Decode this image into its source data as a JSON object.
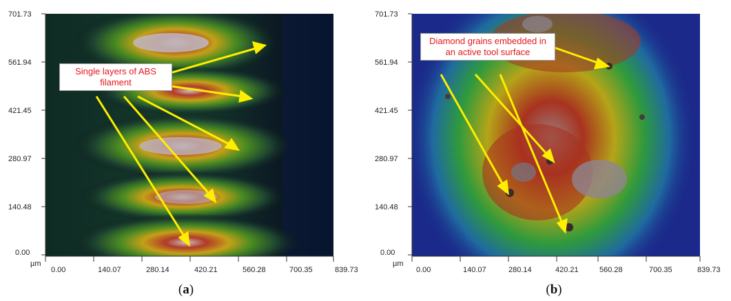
{
  "panels": [
    {
      "id": "a",
      "label": "a",
      "callout": "Single layers of ABS filament",
      "unit": "µm",
      "y_ticks": [
        "701.73",
        "561.94",
        "421.45",
        "280.97",
        "140.48",
        "0.00"
      ],
      "x_ticks": [
        "0.00",
        "140.07",
        "280.14",
        "420.21",
        "560.28",
        "700.35",
        "839.73"
      ]
    },
    {
      "id": "b",
      "label": "b",
      "callout": "Diamond grains embedded in an active tool surface",
      "unit": "µm",
      "y_ticks": [
        "701.73",
        "561.94",
        "421.45",
        "280.97",
        "140.48",
        "0.00"
      ],
      "x_ticks": [
        "0.00",
        "140.07",
        "280.14",
        "420.21",
        "560.28",
        "700.35",
        "839.73"
      ]
    }
  ],
  "colors": {
    "callout_text": "#e4161a",
    "arrow": "#ffee00"
  }
}
